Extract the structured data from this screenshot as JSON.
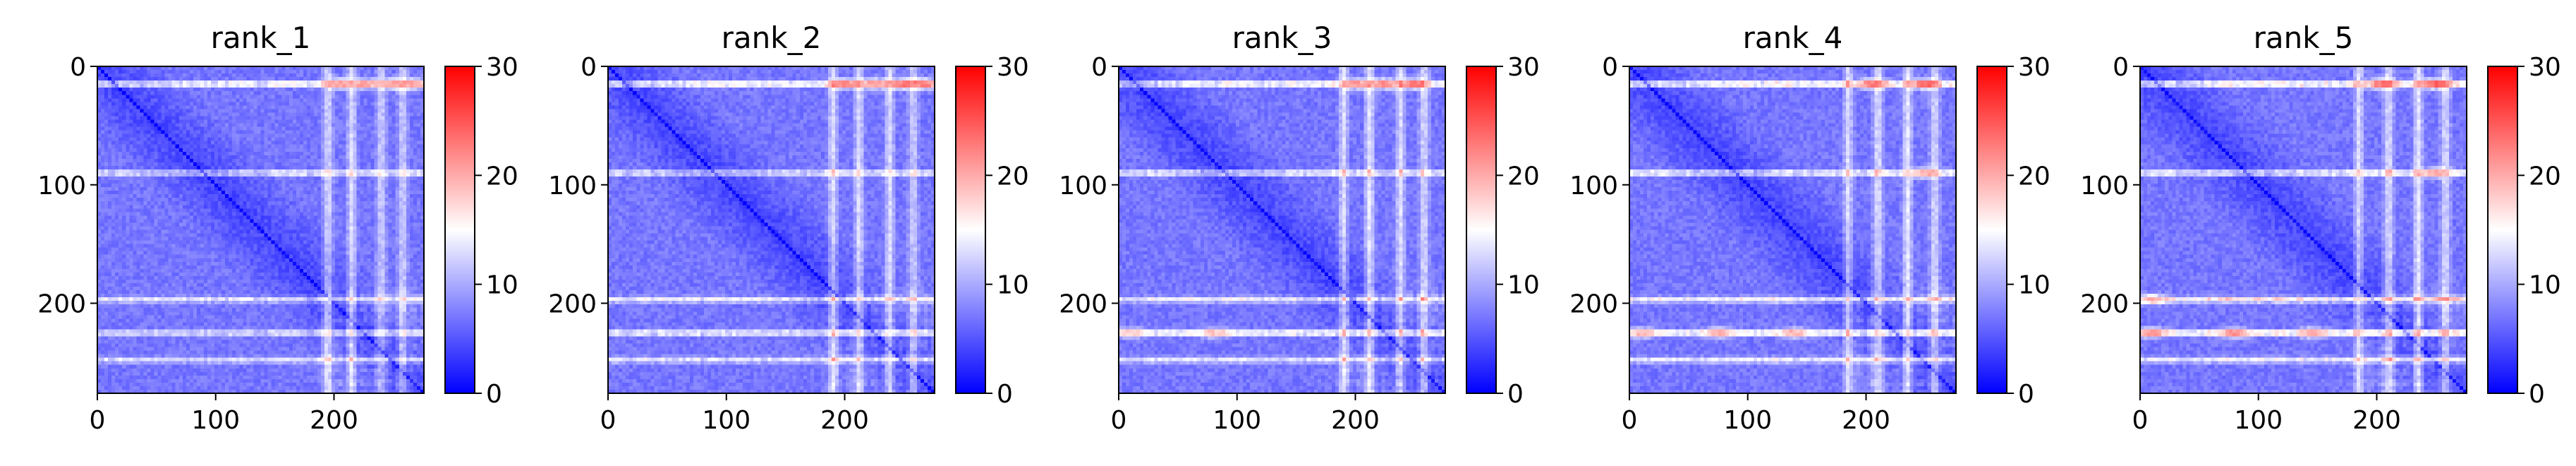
{
  "chart_data": [
    {
      "type": "heatmap",
      "title": "rank_1",
      "matrix_size": 276,
      "xlim": [
        0,
        276
      ],
      "ylim": [
        276,
        0
      ],
      "xticks": [
        0,
        100,
        200
      ],
      "yticks": [
        0,
        100,
        200
      ],
      "colorbar": {
        "range": [
          0,
          30
        ],
        "ticks": [
          0,
          10,
          20,
          30
        ],
        "colormap": "bwr"
      },
      "features": {
        "bright_rows": [
          {
            "pos": 15,
            "v": 17
          },
          {
            "pos": 90,
            "v": 14
          },
          {
            "pos": 197,
            "v": 13
          },
          {
            "pos": 225,
            "v": 13
          },
          {
            "pos": 248,
            "v": 12
          }
        ],
        "bright_cols": [
          {
            "pos": 195,
            "v": 14
          },
          {
            "pos": 215,
            "v": 14
          },
          {
            "pos": 240,
            "v": 13
          },
          {
            "pos": 258,
            "v": 13
          }
        ],
        "hot_spots": [
          {
            "row": 15,
            "col": 205,
            "v": 22
          },
          {
            "row": 15,
            "col": 225,
            "v": 21
          },
          {
            "row": 15,
            "col": 250,
            "v": 22
          },
          {
            "row": 15,
            "col": 268,
            "v": 21
          }
        ]
      }
    },
    {
      "type": "heatmap",
      "title": "rank_2",
      "matrix_size": 276,
      "xlim": [
        0,
        276
      ],
      "ylim": [
        276,
        0
      ],
      "xticks": [
        0,
        100,
        200
      ],
      "yticks": [
        0,
        100,
        200
      ],
      "colorbar": {
        "range": [
          0,
          30
        ],
        "ticks": [
          0,
          10,
          20,
          30
        ],
        "colormap": "bwr"
      },
      "features": {
        "bright_rows": [
          {
            "pos": 15,
            "v": 18
          },
          {
            "pos": 90,
            "v": 14
          },
          {
            "pos": 197,
            "v": 14
          },
          {
            "pos": 225,
            "v": 15
          },
          {
            "pos": 248,
            "v": 13
          }
        ],
        "bright_cols": [
          {
            "pos": 190,
            "v": 14
          },
          {
            "pos": 212,
            "v": 14
          },
          {
            "pos": 238,
            "v": 14
          },
          {
            "pos": 258,
            "v": 13
          }
        ],
        "hot_spots": [
          {
            "row": 15,
            "col": 200,
            "v": 23
          },
          {
            "row": 15,
            "col": 225,
            "v": 22
          },
          {
            "row": 15,
            "col": 250,
            "v": 24
          },
          {
            "row": 15,
            "col": 268,
            "v": 23
          }
        ]
      }
    },
    {
      "type": "heatmap",
      "title": "rank_3",
      "matrix_size": 276,
      "xlim": [
        0,
        276
      ],
      "ylim": [
        276,
        0
      ],
      "xticks": [
        0,
        100,
        200
      ],
      "yticks": [
        0,
        100,
        200
      ],
      "colorbar": {
        "range": [
          0,
          30
        ],
        "ticks": [
          0,
          10,
          20,
          30
        ],
        "colormap": "bwr"
      },
      "features": {
        "bright_rows": [
          {
            "pos": 15,
            "v": 18
          },
          {
            "pos": 90,
            "v": 15
          },
          {
            "pos": 197,
            "v": 14
          },
          {
            "pos": 225,
            "v": 17
          },
          {
            "pos": 248,
            "v": 13
          }
        ],
        "bright_cols": [
          {
            "pos": 190,
            "v": 14
          },
          {
            "pos": 212,
            "v": 15
          },
          {
            "pos": 238,
            "v": 14
          },
          {
            "pos": 258,
            "v": 14
          }
        ],
        "hot_spots": [
          {
            "row": 15,
            "col": 200,
            "v": 22
          },
          {
            "row": 15,
            "col": 225,
            "v": 23
          },
          {
            "row": 15,
            "col": 250,
            "v": 24
          },
          {
            "row": 225,
            "col": 10,
            "v": 19
          },
          {
            "row": 225,
            "col": 80,
            "v": 19
          }
        ]
      }
    },
    {
      "type": "heatmap",
      "title": "rank_4",
      "matrix_size": 276,
      "xlim": [
        0,
        276
      ],
      "ylim": [
        276,
        0
      ],
      "xticks": [
        0,
        100,
        200
      ],
      "yticks": [
        0,
        100,
        200
      ],
      "colorbar": {
        "range": [
          0,
          30
        ],
        "ticks": [
          0,
          10,
          20,
          30
        ],
        "colormap": "bwr"
      },
      "features": {
        "bright_rows": [
          {
            "pos": 15,
            "v": 19
          },
          {
            "pos": 90,
            "v": 16
          },
          {
            "pos": 197,
            "v": 15
          },
          {
            "pos": 225,
            "v": 18
          },
          {
            "pos": 248,
            "v": 14
          }
        ],
        "bright_cols": [
          {
            "pos": 185,
            "v": 14
          },
          {
            "pos": 210,
            "v": 15
          },
          {
            "pos": 235,
            "v": 15
          },
          {
            "pos": 258,
            "v": 14
          }
        ],
        "hot_spots": [
          {
            "row": 15,
            "col": 205,
            "v": 24
          },
          {
            "row": 15,
            "col": 250,
            "v": 25
          },
          {
            "row": 90,
            "col": 250,
            "v": 20
          },
          {
            "row": 225,
            "col": 10,
            "v": 20
          },
          {
            "row": 225,
            "col": 75,
            "v": 21
          },
          {
            "row": 225,
            "col": 140,
            "v": 20
          }
        ]
      }
    },
    {
      "type": "heatmap",
      "title": "rank_5",
      "matrix_size": 276,
      "xlim": [
        0,
        276
      ],
      "ylim": [
        276,
        0
      ],
      "xticks": [
        0,
        100,
        200
      ],
      "yticks": [
        0,
        100,
        200
      ],
      "colorbar": {
        "range": [
          0,
          30
        ],
        "ticks": [
          0,
          10,
          20,
          30
        ],
        "colormap": "bwr"
      },
      "features": {
        "bright_rows": [
          {
            "pos": 15,
            "v": 19
          },
          {
            "pos": 90,
            "v": 16
          },
          {
            "pos": 197,
            "v": 17
          },
          {
            "pos": 225,
            "v": 19
          },
          {
            "pos": 248,
            "v": 14
          }
        ],
        "bright_cols": [
          {
            "pos": 185,
            "v": 14
          },
          {
            "pos": 210,
            "v": 15
          },
          {
            "pos": 235,
            "v": 15
          },
          {
            "pos": 258,
            "v": 14
          }
        ],
        "hot_spots": [
          {
            "row": 15,
            "col": 205,
            "v": 24
          },
          {
            "row": 15,
            "col": 250,
            "v": 25
          },
          {
            "row": 90,
            "col": 250,
            "v": 21
          },
          {
            "row": 197,
            "col": 10,
            "v": 20
          },
          {
            "row": 225,
            "col": 10,
            "v": 22
          },
          {
            "row": 225,
            "col": 80,
            "v": 22
          },
          {
            "row": 225,
            "col": 145,
            "v": 21
          }
        ]
      }
    }
  ]
}
